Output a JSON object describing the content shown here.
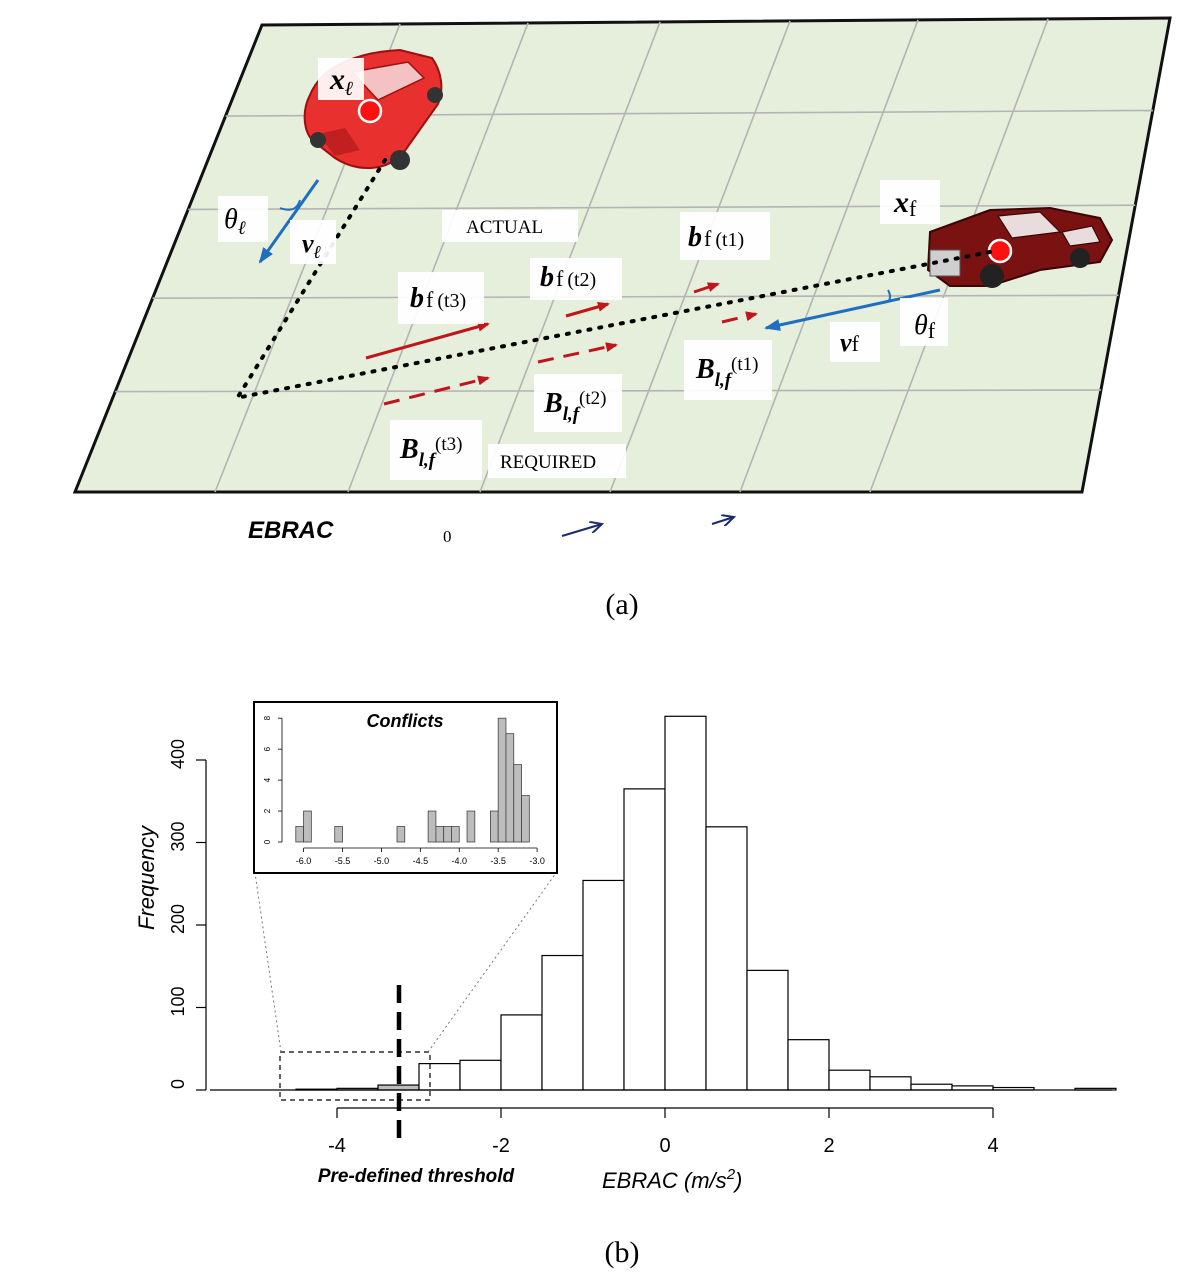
{
  "diagram": {
    "caption": "(a)",
    "labels": {
      "x_leader": "x",
      "x_leader_sub": "ℓ",
      "theta_leader": "θ",
      "theta_leader_sub": "ℓ",
      "v_leader": "v",
      "v_leader_sub": "ℓ",
      "x_follower": "x",
      "x_follower_sub": "f",
      "v_follower": "v",
      "v_follower_sub": "f",
      "theta_follower": "θ",
      "theta_follower_sub": "f",
      "actual": "ACTUAL",
      "required": "REQUIRED",
      "b_t1": "b",
      "b_t1_sub": "f",
      "b_t1_arg": "(t1)",
      "b_t2": "b",
      "b_t2_sub": "f",
      "b_t2_arg": "(t2)",
      "b_t3": "b",
      "b_t3_sub": "f",
      "b_t3_arg": "(t3)",
      "B_t1": "B",
      "B_t1_sub": "l,f",
      "B_t1_arg": "(t1)",
      "B_t2": "B",
      "B_t2_sub": "l,f",
      "B_t2_arg": "(t2)",
      "B_t3": "B",
      "B_t3_sub": "l,f",
      "B_t3_arg": "(t3)",
      "ebrac_label": "EBRAC",
      "ebrac_zero": "0"
    },
    "colors": {
      "ground": "#e6eedc",
      "grid": "#b4b4b4",
      "leader_car": "#e8302e",
      "follower_car": "#7a1212",
      "actual_arrow": "#c0161b",
      "velocity_arrow": "#1f6fc1",
      "ebrac_arrow": "#1a2a6c"
    }
  },
  "chart_data": {
    "type": "bar",
    "caption": "(b)",
    "xlabel": "EBRAC (m/s",
    "xlabel_sup": "2",
    "xlabel_end": ")",
    "ylabel": "Frequency",
    "xlim": [
      -5.5,
      5.5
    ],
    "ylim": [
      0,
      450
    ],
    "x_ticks": [
      -4,
      -2,
      0,
      2,
      4
    ],
    "y_ticks": [
      0,
      100,
      200,
      300,
      400
    ],
    "bin_width": 0.5,
    "bins": [
      {
        "x0": -4.5,
        "x1": -4.0,
        "count": 1
      },
      {
        "x0": -4.0,
        "x1": -3.5,
        "count": 2
      },
      {
        "x0": -3.5,
        "x1": -3.0,
        "count": 6
      },
      {
        "x0": -3.0,
        "x1": -2.5,
        "count": 32
      },
      {
        "x0": -2.5,
        "x1": -2.0,
        "count": 36
      },
      {
        "x0": -2.0,
        "x1": -1.5,
        "count": 91
      },
      {
        "x0": -1.5,
        "x1": -1.0,
        "count": 163
      },
      {
        "x0": -1.0,
        "x1": -0.5,
        "count": 254
      },
      {
        "x0": -0.5,
        "x1": 0.0,
        "count": 365
      },
      {
        "x0": 0.0,
        "x1": 0.5,
        "count": 453
      },
      {
        "x0": 0.5,
        "x1": 1.0,
        "count": 319
      },
      {
        "x0": 1.0,
        "x1": 1.5,
        "count": 145
      },
      {
        "x0": 1.5,
        "x1": 2.0,
        "count": 61
      },
      {
        "x0": 2.0,
        "x1": 2.5,
        "count": 24
      },
      {
        "x0": 2.5,
        "x1": 3.0,
        "count": 16
      },
      {
        "x0": 3.0,
        "x1": 3.5,
        "count": 7
      },
      {
        "x0": 3.5,
        "x1": 4.0,
        "count": 5
      },
      {
        "x0": 4.0,
        "x1": 4.5,
        "count": 3
      },
      {
        "x0": 5.0,
        "x1": 5.5,
        "count": 2
      }
    ],
    "threshold": {
      "value": -3.0,
      "label": "Pre-defined threshold"
    },
    "inset": {
      "title": "Conflicts",
      "xlim": [
        -6.2,
        -2.95
      ],
      "ylim": [
        0,
        8.4
      ],
      "x_ticks": [
        "-6.0",
        "-5.5",
        "-5.0",
        "-4.5",
        "-4.0",
        "-3.5",
        "-3.0"
      ],
      "x_tick_values": [
        -6.0,
        -5.5,
        -5.0,
        -4.5,
        -4.0,
        -3.5,
        -3.0
      ],
      "y_ticks": [
        "0",
        "2",
        "4",
        "6",
        "8"
      ],
      "y_tick_values": [
        0,
        2,
        4,
        6,
        8
      ],
      "bin_width": 0.1,
      "bins": [
        {
          "x0": -6.1,
          "count": 1
        },
        {
          "x0": -6.0,
          "count": 2
        },
        {
          "x0": -5.6,
          "count": 1
        },
        {
          "x0": -4.8,
          "count": 1
        },
        {
          "x0": -4.4,
          "count": 2
        },
        {
          "x0": -4.3,
          "count": 1
        },
        {
          "x0": -4.2,
          "count": 1
        },
        {
          "x0": -4.1,
          "count": 1
        },
        {
          "x0": -3.9,
          "count": 2
        },
        {
          "x0": -3.6,
          "count": 2
        },
        {
          "x0": -3.5,
          "count": 8
        },
        {
          "x0": -3.4,
          "count": 7
        },
        {
          "x0": -3.3,
          "count": 5
        },
        {
          "x0": -3.2,
          "count": 3
        }
      ]
    }
  }
}
